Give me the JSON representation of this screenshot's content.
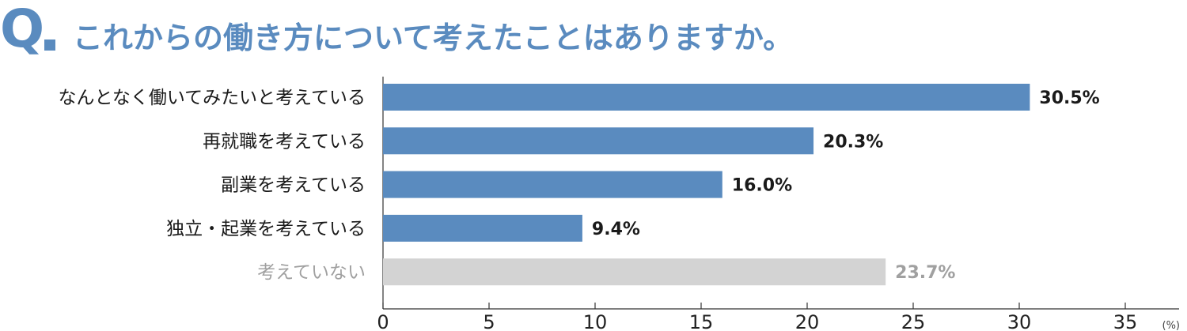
{
  "question": {
    "mark": "Q",
    "text": "これからの働き方について考えたことはありますか。"
  },
  "colors": {
    "accent": "#5a8bbf",
    "muted_bar": "#d3d3d3",
    "muted_text": "#a0a0a0",
    "axis": "#333333",
    "label_text": "#1a1a1a"
  },
  "chart_data": {
    "type": "bar",
    "orientation": "horizontal",
    "categories": [
      "なんとなく働いてみたいと考えている",
      "再就職を考えている",
      "副業を考えている",
      "独立・起業を考えている",
      "考えていない"
    ],
    "values": [
      30.5,
      20.3,
      16.0,
      9.4,
      23.7
    ],
    "value_labels": [
      "30.5%",
      "20.3%",
      "16.0%",
      "9.4%",
      "23.7%"
    ],
    "muted": [
      false,
      false,
      false,
      false,
      true
    ],
    "xlim": [
      0,
      37
    ],
    "x_ticks": [
      0,
      5,
      10,
      15,
      20,
      25,
      30,
      35
    ],
    "x_unit": "(%)",
    "grid": false
  }
}
